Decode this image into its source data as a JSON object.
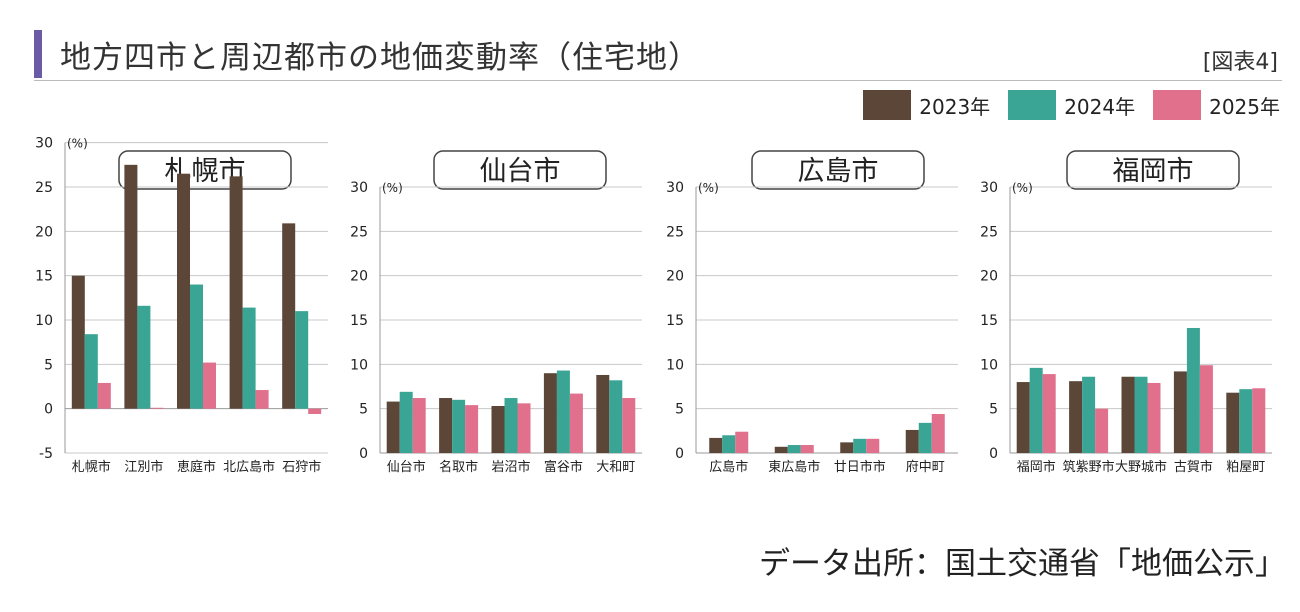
{
  "page": {
    "title": "地方四市と周辺都市の地価変動率（住宅地）",
    "figure_label": "[図表4]",
    "source": "データ出所：国土交通省「地価公示」"
  },
  "legend": [
    {
      "label": "2023年",
      "color": "#5b4638"
    },
    {
      "label": "2024年",
      "color": "#3aa595"
    },
    {
      "label": "2025年",
      "color": "#e0708c"
    }
  ],
  "chart_data": [
    {
      "type": "bar",
      "title": "札幌市",
      "unit_label": "(%)",
      "ylim": [
        -5,
        30
      ],
      "yticks": [
        -5,
        0,
        5,
        10,
        15,
        20,
        25,
        30
      ],
      "categories": [
        "札幌市",
        "江別市",
        "恵庭市",
        "北広島市",
        "石狩市"
      ],
      "series": [
        {
          "name": "2023年",
          "values": [
            15.0,
            27.5,
            26.5,
            26.2,
            20.9
          ]
        },
        {
          "name": "2024年",
          "values": [
            8.4,
            11.6,
            14.0,
            11.4,
            11.0
          ]
        },
        {
          "name": "2025年",
          "values": [
            2.9,
            0.1,
            5.2,
            2.1,
            -0.6
          ]
        }
      ]
    },
    {
      "type": "bar",
      "title": "仙台市",
      "unit_label": "(%)",
      "ylim": [
        0,
        30
      ],
      "yticks": [
        0,
        5,
        10,
        15,
        20,
        25,
        30
      ],
      "categories": [
        "仙台市",
        "名取市",
        "岩沼市",
        "富谷市",
        "大和町"
      ],
      "series": [
        {
          "name": "2023年",
          "values": [
            5.8,
            6.2,
            5.3,
            9.0,
            8.8
          ]
        },
        {
          "name": "2024年",
          "values": [
            6.9,
            6.0,
            6.2,
            9.3,
            8.2
          ]
        },
        {
          "name": "2025年",
          "values": [
            6.2,
            5.4,
            5.6,
            6.7,
            6.2
          ]
        }
      ]
    },
    {
      "type": "bar",
      "title": "広島市",
      "unit_label": "(%)",
      "ylim": [
        0,
        30
      ],
      "yticks": [
        0,
        5,
        10,
        15,
        20,
        25,
        30
      ],
      "categories": [
        "広島市",
        "東広島市",
        "廿日市市",
        "府中町"
      ],
      "series": [
        {
          "name": "2023年",
          "values": [
            1.7,
            0.7,
            1.2,
            2.6
          ]
        },
        {
          "name": "2024年",
          "values": [
            2.0,
            0.9,
            1.6,
            3.4
          ]
        },
        {
          "name": "2025年",
          "values": [
            2.4,
            0.9,
            1.6,
            4.4
          ]
        }
      ]
    },
    {
      "type": "bar",
      "title": "福岡市",
      "unit_label": "(%)",
      "ylim": [
        0,
        30
      ],
      "yticks": [
        0,
        5,
        10,
        15,
        20,
        25,
        30
      ],
      "categories": [
        "福岡市",
        "筑紫野市",
        "大野城市",
        "古賀市",
        "粕屋町"
      ],
      "series": [
        {
          "name": "2023年",
          "values": [
            8.0,
            8.1,
            8.6,
            9.2,
            6.8
          ]
        },
        {
          "name": "2024年",
          "values": [
            9.6,
            8.6,
            8.6,
            14.1,
            7.2
          ]
        },
        {
          "name": "2025年",
          "values": [
            8.9,
            5.0,
            7.9,
            9.9,
            7.3
          ]
        }
      ]
    }
  ]
}
